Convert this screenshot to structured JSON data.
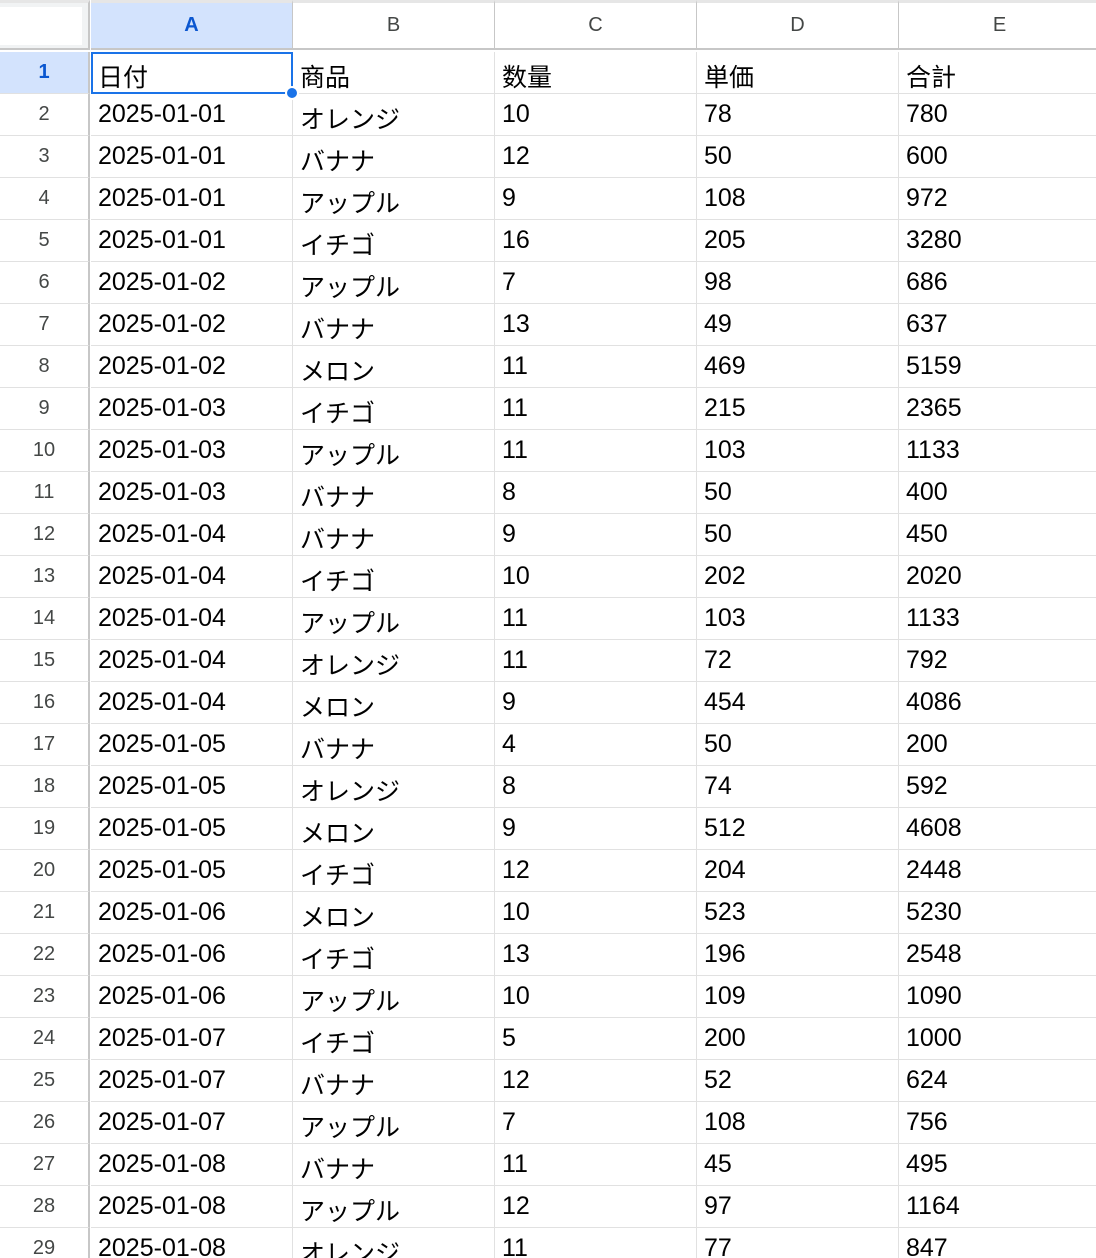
{
  "columns": [
    "A",
    "B",
    "C",
    "D",
    "E"
  ],
  "selected_column": "A",
  "selected_row": "1",
  "rows": [
    {
      "num": "1",
      "cells": [
        "日付",
        "商品",
        "数量",
        "単価",
        "合計"
      ]
    },
    {
      "num": "2",
      "cells": [
        "2025-01-01",
        "オレンジ",
        "10",
        "78",
        "780"
      ]
    },
    {
      "num": "3",
      "cells": [
        "2025-01-01",
        "バナナ",
        "12",
        "50",
        "600"
      ]
    },
    {
      "num": "4",
      "cells": [
        "2025-01-01",
        "アップル",
        "9",
        "108",
        "972"
      ]
    },
    {
      "num": "5",
      "cells": [
        "2025-01-01",
        "イチゴ",
        "16",
        "205",
        "3280"
      ]
    },
    {
      "num": "6",
      "cells": [
        "2025-01-02",
        "アップル",
        "7",
        "98",
        "686"
      ]
    },
    {
      "num": "7",
      "cells": [
        "2025-01-02",
        "バナナ",
        "13",
        "49",
        "637"
      ]
    },
    {
      "num": "8",
      "cells": [
        "2025-01-02",
        "メロン",
        "11",
        "469",
        "5159"
      ]
    },
    {
      "num": "9",
      "cells": [
        "2025-01-03",
        "イチゴ",
        "11",
        "215",
        "2365"
      ]
    },
    {
      "num": "10",
      "cells": [
        "2025-01-03",
        "アップル",
        "11",
        "103",
        "1133"
      ]
    },
    {
      "num": "11",
      "cells": [
        "2025-01-03",
        "バナナ",
        "8",
        "50",
        "400"
      ]
    },
    {
      "num": "12",
      "cells": [
        "2025-01-04",
        "バナナ",
        "9",
        "50",
        "450"
      ]
    },
    {
      "num": "13",
      "cells": [
        "2025-01-04",
        "イチゴ",
        "10",
        "202",
        "2020"
      ]
    },
    {
      "num": "14",
      "cells": [
        "2025-01-04",
        "アップル",
        "11",
        "103",
        "1133"
      ]
    },
    {
      "num": "15",
      "cells": [
        "2025-01-04",
        "オレンジ",
        "11",
        "72",
        "792"
      ]
    },
    {
      "num": "16",
      "cells": [
        "2025-01-04",
        "メロン",
        "9",
        "454",
        "4086"
      ]
    },
    {
      "num": "17",
      "cells": [
        "2025-01-05",
        "バナナ",
        "4",
        "50",
        "200"
      ]
    },
    {
      "num": "18",
      "cells": [
        "2025-01-05",
        "オレンジ",
        "8",
        "74",
        "592"
      ]
    },
    {
      "num": "19",
      "cells": [
        "2025-01-05",
        "メロン",
        "9",
        "512",
        "4608"
      ]
    },
    {
      "num": "20",
      "cells": [
        "2025-01-05",
        "イチゴ",
        "12",
        "204",
        "2448"
      ]
    },
    {
      "num": "21",
      "cells": [
        "2025-01-06",
        "メロン",
        "10",
        "523",
        "5230"
      ]
    },
    {
      "num": "22",
      "cells": [
        "2025-01-06",
        "イチゴ",
        "13",
        "196",
        "2548"
      ]
    },
    {
      "num": "23",
      "cells": [
        "2025-01-06",
        "アップル",
        "10",
        "109",
        "1090"
      ]
    },
    {
      "num": "24",
      "cells": [
        "2025-01-07",
        "イチゴ",
        "5",
        "200",
        "1000"
      ]
    },
    {
      "num": "25",
      "cells": [
        "2025-01-07",
        "バナナ",
        "12",
        "52",
        "624"
      ]
    },
    {
      "num": "26",
      "cells": [
        "2025-01-07",
        "アップル",
        "7",
        "108",
        "756"
      ]
    },
    {
      "num": "27",
      "cells": [
        "2025-01-08",
        "バナナ",
        "11",
        "45",
        "495"
      ]
    },
    {
      "num": "28",
      "cells": [
        "2025-01-08",
        "アップル",
        "12",
        "97",
        "1164"
      ]
    },
    {
      "num": "29",
      "cells": [
        "2025-01-08",
        "オレンジ",
        "11",
        "77",
        "847"
      ]
    }
  ]
}
